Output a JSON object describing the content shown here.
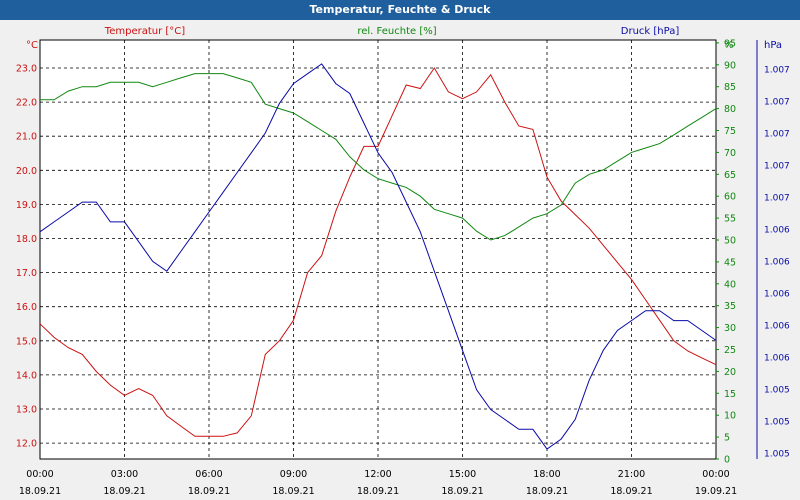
{
  "window": {
    "title": "Temperatur, Feuchte & Druck"
  },
  "colors": {
    "temperature": "#cc1111",
    "humidity": "#118811",
    "pressure": "#0a0aa8",
    "grid": "#000000"
  },
  "chart_data": {
    "type": "line",
    "title": "Temperatur, Feuchte & Druck",
    "grid": true,
    "x": {
      "range": [
        "18.09.21 00:00",
        "19.09.21 00:00"
      ],
      "ticks": [
        {
          "time": "00:00",
          "date": "18.09.21"
        },
        {
          "time": "03:00",
          "date": "18.09.21"
        },
        {
          "time": "06:00",
          "date": "18.09.21"
        },
        {
          "time": "09:00",
          "date": "18.09.21"
        },
        {
          "time": "12:00",
          "date": "18.09.21"
        },
        {
          "time": "15:00",
          "date": "18.09.21"
        },
        {
          "time": "18:00",
          "date": "18.09.21"
        },
        {
          "time": "21:00",
          "date": "18.09.21"
        },
        {
          "time": "00:00",
          "date": "19.09.21"
        }
      ]
    },
    "axes": {
      "temperature": {
        "label": "Temperatur [°C]",
        "unit": "°C",
        "ylim": [
          11.5,
          23.8
        ],
        "ticks": [
          "12.0",
          "13.0",
          "14.0",
          "15.0",
          "16.0",
          "17.0",
          "18.0",
          "19.0",
          "20.0",
          "21.0",
          "22.0",
          "23.0"
        ]
      },
      "humidity": {
        "label": "rel. Feuchte [%]",
        "unit": "%",
        "ylim": [
          0,
          95
        ],
        "ticks": [
          "0",
          "5",
          "10",
          "15",
          "20",
          "25",
          "30",
          "35",
          "40",
          "45",
          "50",
          "55",
          "60",
          "65",
          "70",
          "75",
          "80",
          "85",
          "90",
          "95"
        ]
      },
      "pressure": {
        "label": "Druck [hPa]",
        "unit": "hPa",
        "ticks": [
          "1.005",
          "1.005",
          "1.005",
          "1.006",
          "1.006",
          "1.006",
          "1.006",
          "1.006",
          "1.007",
          "1.007",
          "1.007",
          "1.007",
          "1.007"
        ]
      }
    },
    "series": [
      {
        "name": "Temperatur [°C]",
        "axis": "temperature",
        "x": [
          0,
          0.5,
          1,
          1.5,
          2,
          2.5,
          3,
          3.5,
          4,
          4.5,
          5,
          5.5,
          6,
          6.5,
          7,
          7.5,
          8,
          8.5,
          9,
          9.5,
          10,
          10.5,
          11,
          11.5,
          12,
          12.5,
          13,
          13.5,
          14,
          14.5,
          15,
          15.5,
          16,
          16.5,
          17,
          17.5,
          18,
          18.5,
          19,
          19.5,
          20,
          20.5,
          21,
          21.5,
          22,
          22.5,
          23,
          23.5,
          24
        ],
        "values": [
          15.5,
          15.1,
          14.8,
          14.6,
          14.1,
          13.7,
          13.4,
          13.6,
          13.4,
          12.8,
          12.5,
          12.2,
          12.2,
          12.2,
          12.3,
          12.8,
          14.6,
          15.0,
          15.6,
          17.0,
          17.5,
          18.8,
          19.8,
          20.7,
          20.7,
          21.6,
          22.5,
          22.4,
          23.0,
          22.3,
          22.1,
          22.3,
          22.8,
          22.0,
          21.3,
          21.2,
          19.8,
          19.1,
          18.7,
          18.3,
          17.8,
          17.3,
          16.8,
          16.2,
          15.6,
          15.0,
          14.7,
          14.5,
          14.3
        ]
      },
      {
        "name": "rel. Feuchte [%]",
        "axis": "humidity",
        "x": [
          0,
          0.5,
          1,
          1.5,
          2,
          2.5,
          3,
          3.5,
          4,
          4.5,
          5,
          5.5,
          6,
          6.5,
          7,
          7.5,
          8,
          8.5,
          9,
          9.5,
          10,
          10.5,
          11,
          11.5,
          12,
          12.5,
          13,
          13.5,
          14,
          14.5,
          15,
          15.5,
          16,
          16.5,
          17,
          17.5,
          18,
          18.5,
          19,
          19.5,
          20,
          20.5,
          21,
          21.5,
          22,
          22.5,
          23,
          23.5,
          24
        ],
        "values": [
          82,
          82,
          84,
          85,
          85,
          86,
          86,
          86,
          85,
          86,
          87,
          88,
          88,
          88,
          87,
          86,
          81,
          80,
          79,
          77,
          75,
          73,
          69,
          66,
          64,
          63,
          62,
          60,
          57,
          56,
          55,
          52,
          50,
          51,
          53,
          55,
          56,
          58,
          63,
          65,
          66,
          68,
          70,
          71,
          72,
          74,
          76,
          78,
          80
        ]
      },
      {
        "name": "Druck [hPa]",
        "axis": "pressure",
        "x": [
          0,
          0.5,
          1,
          1.5,
          2,
          2.5,
          3,
          3.5,
          4,
          4.5,
          5,
          5.5,
          6,
          6.5,
          7,
          7.5,
          8,
          8.5,
          9,
          9.5,
          10,
          10.5,
          11,
          11.5,
          12,
          12.5,
          13,
          13.5,
          14,
          14.5,
          15,
          15.5,
          16,
          16.5,
          17,
          17.5,
          18,
          18.5,
          19,
          19.5,
          20,
          20.5,
          21,
          21.5,
          22,
          22.5,
          23,
          23.5,
          24
        ],
        "values": [
          1.0062,
          1.0063,
          1.0064,
          1.0065,
          1.0065,
          1.0063,
          1.0063,
          1.0061,
          1.0059,
          1.0058,
          1.006,
          1.0062,
          1.0064,
          1.0066,
          1.0068,
          1.007,
          1.0072,
          1.0075,
          1.0077,
          1.0078,
          1.0079,
          1.0077,
          1.0076,
          1.0073,
          1.007,
          1.0068,
          1.0065,
          1.0062,
          1.0058,
          1.0054,
          1.005,
          1.0046,
          1.0044,
          1.0043,
          1.0042,
          1.0042,
          1.004,
          1.0041,
          1.0043,
          1.0047,
          1.005,
          1.0052,
          1.0053,
          1.0054,
          1.0054,
          1.0053,
          1.0053,
          1.0052,
          1.0051
        ]
      }
    ]
  }
}
